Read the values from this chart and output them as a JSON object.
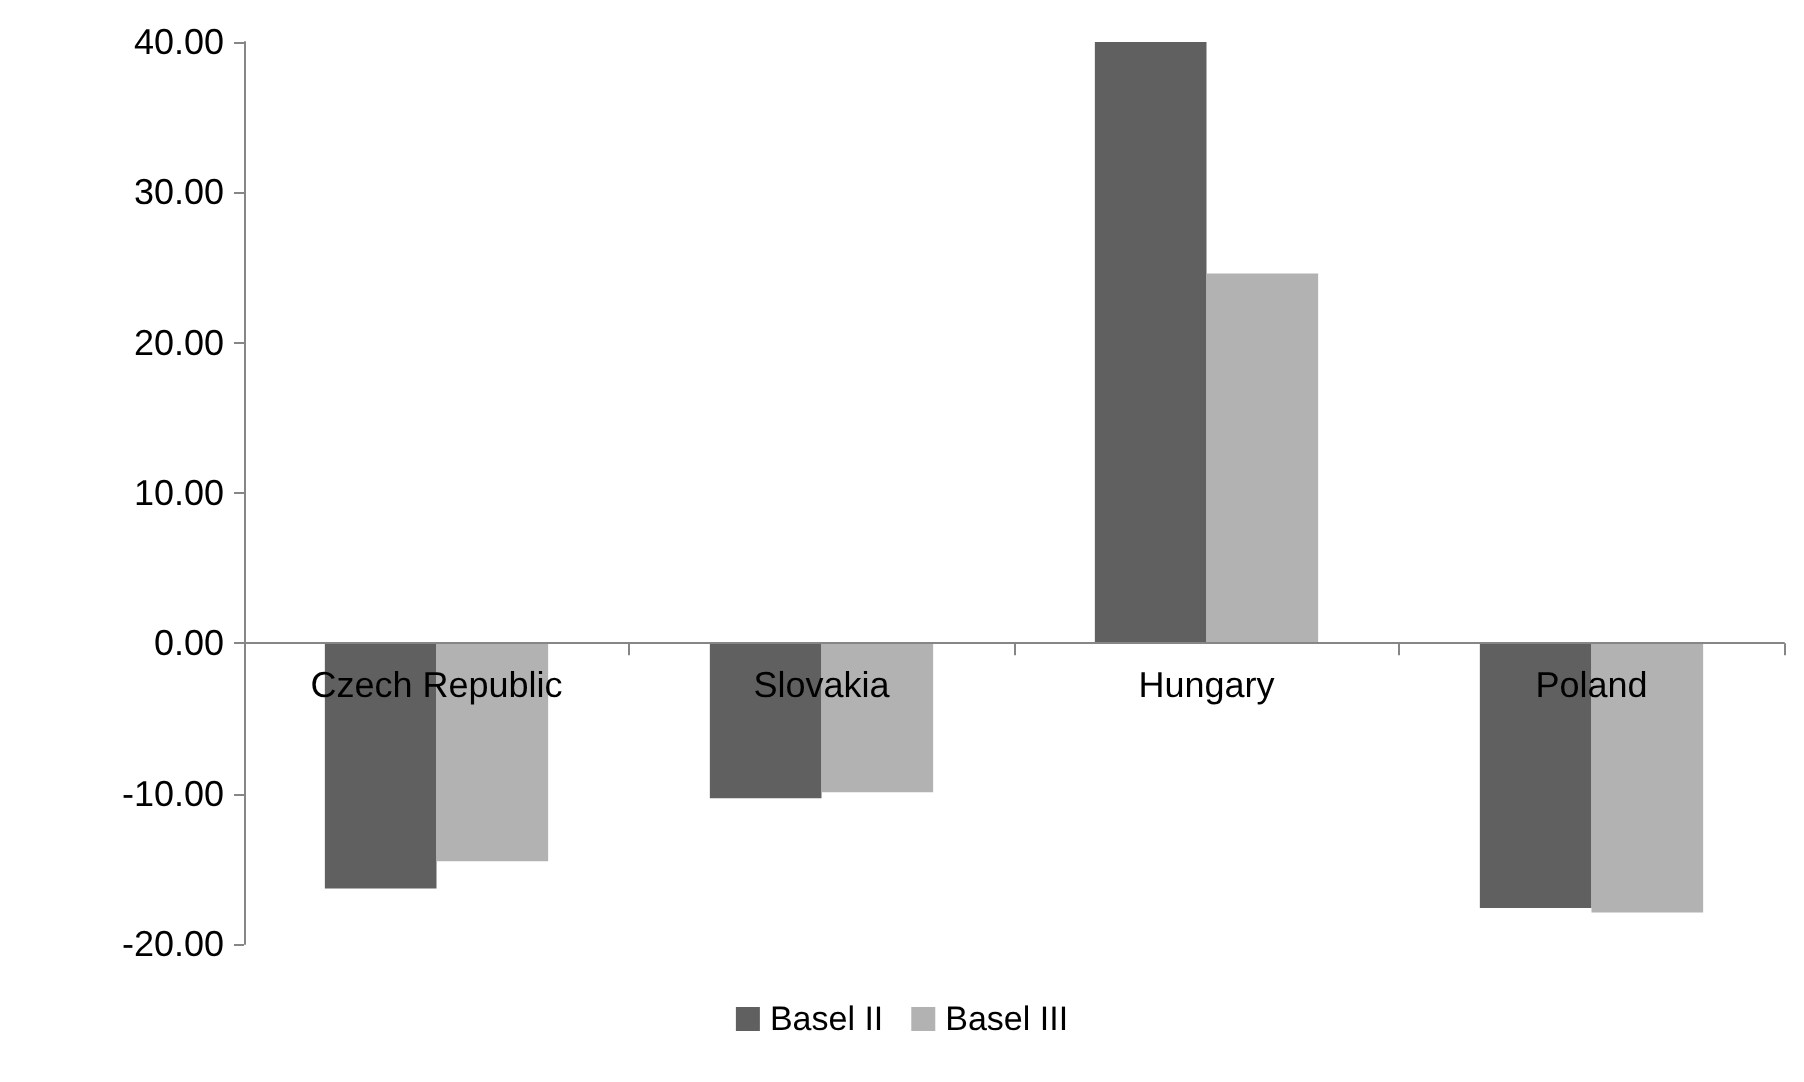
{
  "chart_data": {
    "type": "bar",
    "categories": [
      "Czech Republic",
      "Slovakia",
      "Hungary",
      "Poland"
    ],
    "series": [
      {
        "name": "Basel II",
        "color": "#606060",
        "values": [
          -16.3,
          -10.3,
          40.0,
          -17.6
        ]
      },
      {
        "name": "Basel III",
        "color": "#b2b2b2",
        "values": [
          -14.5,
          -9.9,
          24.6,
          -17.9
        ]
      }
    ],
    "ylim": [
      -20,
      40
    ],
    "yticks": [
      {
        "value": -20,
        "label": "-20.00"
      },
      {
        "value": -10,
        "label": "-10.00"
      },
      {
        "value": 0,
        "label": "0.00"
      },
      {
        "value": 10,
        "label": "10.00"
      },
      {
        "value": 20,
        "label": "20.00"
      },
      {
        "value": 30,
        "label": "30.00"
      },
      {
        "value": 40,
        "label": "40.00"
      }
    ],
    "legend": "bottom"
  }
}
